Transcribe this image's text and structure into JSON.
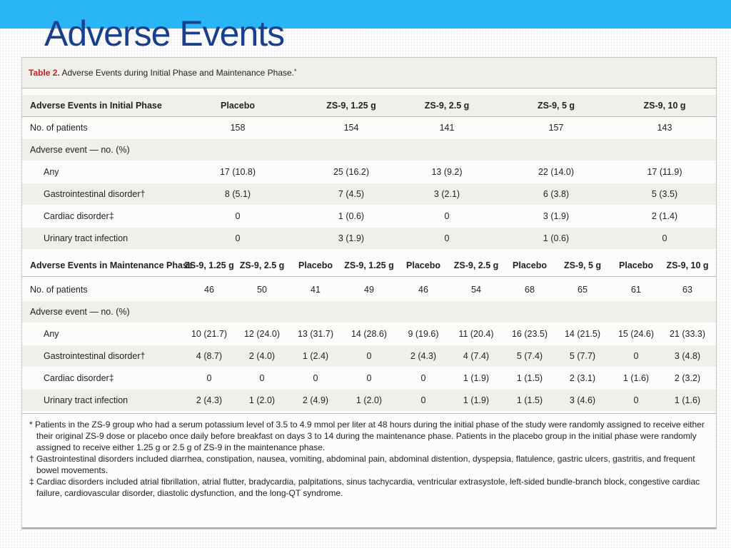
{
  "slide": {
    "title": "Adverse Events"
  },
  "table": {
    "caption_label": "Table 2.",
    "caption_text": " Adverse Events during Initial Phase and Maintenance Phase.",
    "caption_mark": "*",
    "initial": {
      "header": [
        "Adverse Events in Initial Phase",
        "Placebo",
        "ZS-9, 1.25 g",
        "ZS-9, 2.5 g",
        "ZS-9, 5 g",
        "ZS-9, 10 g"
      ],
      "patients": [
        "No. of patients",
        "158",
        "154",
        "141",
        "157",
        "143"
      ],
      "section_label": "Adverse event — no. (%)",
      "rows": [
        [
          "Any",
          "17 (10.8)",
          "25 (16.2)",
          "13 (9.2)",
          "22 (14.0)",
          "17 (11.9)"
        ],
        [
          "Gastrointestinal disorder†",
          "8 (5.1)",
          "7 (4.5)",
          "3 (2.1)",
          "6 (3.8)",
          "5 (3.5)"
        ],
        [
          "Cardiac disorder‡",
          "0",
          "1 (0.6)",
          "0",
          "3 (1.9)",
          "2 (1.4)"
        ],
        [
          "Urinary tract infection",
          "0",
          "3 (1.9)",
          "0",
          "1 (0.6)",
          "0"
        ]
      ]
    },
    "maintenance": {
      "header": [
        "Adverse Events in Maintenance Phase",
        "ZS-9, 1.25 g",
        "ZS-9, 2.5 g",
        "Placebo",
        "ZS-9, 1.25 g",
        "Placebo",
        "ZS-9, 2.5 g",
        "Placebo",
        "ZS-9, 5 g",
        "Placebo",
        "ZS-9, 10 g"
      ],
      "patients": [
        "No. of patients",
        "46",
        "50",
        "41",
        "49",
        "46",
        "54",
        "68",
        "65",
        "61",
        "63"
      ],
      "section_label": "Adverse event — no. (%)",
      "rows": [
        [
          "Any",
          "10 (21.7)",
          "12 (24.0)",
          "13 (31.7)",
          "14 (28.6)",
          "9 (19.6)",
          "11 (20.4)",
          "16 (23.5)",
          "14 (21.5)",
          "15 (24.6)",
          "21 (33.3)"
        ],
        [
          "Gastrointestinal disorder†",
          "4 (8.7)",
          "2 (4.0)",
          "1 (2.4)",
          "0",
          "2 (4.3)",
          "4 (7.4)",
          "5 (7.4)",
          "5 (7.7)",
          "0",
          "3 (4.8)"
        ],
        [
          "Cardiac disorder‡",
          "0",
          "0",
          "0",
          "0",
          "0",
          "1 (1.9)",
          "1 (1.5)",
          "2 (3.1)",
          "1 (1.6)",
          "2 (3.2)"
        ],
        [
          "Urinary tract infection",
          "2 (4.3)",
          "1 (2.0)",
          "2 (4.9)",
          "1 (2.0)",
          "0",
          "1 (1.9)",
          "1 (1.5)",
          "3 (4.6)",
          "0",
          "1 (1.6)"
        ]
      ]
    },
    "footnotes": [
      "* Patients in the ZS-9 group who had a serum potassium level of 3.5 to 4.9 mmol per liter at 48 hours during the initial phase of the study were randomly assigned to receive either their original ZS-9 dose or placebo once daily before breakfast on days 3 to 14 during the maintenance phase. Patients in the placebo group in the initial phase were randomly assigned to receive either 1.25 g or 2.5 g of ZS-9 in the maintenance phase.",
      "† Gastrointestinal disorders included diarrhea, constipation, nausea, vomiting, abdominal pain, abdominal distention, dyspepsia, flatulence, gastric ulcers, gastritis, and frequent bowel movements.",
      "‡ Cardiac disorders included atrial fibrillation, atrial flutter, bradycardia, palpitations, sinus tachycardia, ventricular extrasystole, left-sided bundle-branch block, congestive cardiac failure, cardiovascular disorder, diastolic dysfunction, and the long-QT syndrome."
    ]
  },
  "colors": {
    "topbar": "#29b6f6",
    "title": "#1b3f8f",
    "caption_label": "#b7262b",
    "shade": "#f1efe9"
  }
}
